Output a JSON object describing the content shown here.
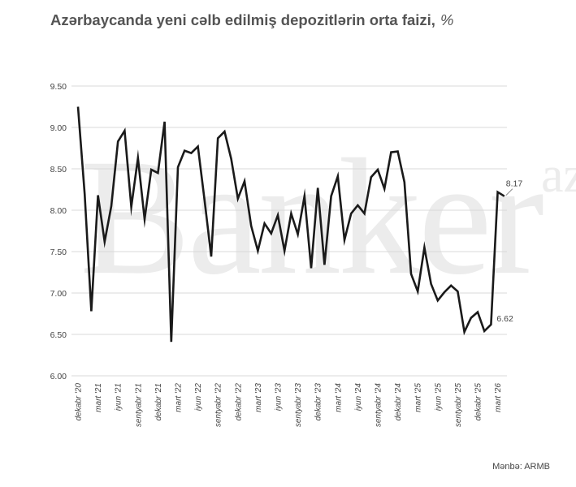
{
  "title": "Azərbaycanda yeni cəlb edilmiş depozitlərin orta faizi,",
  "title_unit": "%",
  "watermark": {
    "main": "Banker",
    "suffix": "az"
  },
  "source": "Mənbə: ARMB",
  "colors": {
    "line": "#1a1a1a",
    "grid": "#d9d9d9",
    "text": "#444444",
    "title": "#545454"
  },
  "chart_data": {
    "type": "line",
    "title": "Azərbaycanda yeni cəlb edilmiş depozitlərin orta faizi, %",
    "xlabel": "",
    "ylabel": "",
    "ylim": [
      6.0,
      9.5
    ],
    "yticks": [
      "9.50",
      "9.00",
      "8.50",
      "8.00",
      "7.50",
      "7.00",
      "6.50",
      "6.00"
    ],
    "grid": true,
    "xtick_labels": [
      {
        "i": 0,
        "label": "dekabr '20"
      },
      {
        "i": 3,
        "label": "mart '21"
      },
      {
        "i": 6,
        "label": "iyun '21"
      },
      {
        "i": 9,
        "label": "sentyabr '21"
      },
      {
        "i": 12,
        "label": "dekabr '21"
      },
      {
        "i": 15,
        "label": "mart '22"
      },
      {
        "i": 18,
        "label": "iyun '22"
      },
      {
        "i": 21,
        "label": "sentyabr '22"
      },
      {
        "i": 24,
        "label": "dekabr '22"
      },
      {
        "i": 27,
        "label": "mart '23"
      },
      {
        "i": 30,
        "label": "iyun '23"
      },
      {
        "i": 33,
        "label": "sentyabr '23"
      },
      {
        "i": 36,
        "label": "dekabr '23"
      },
      {
        "i": 39,
        "label": "mart '24"
      },
      {
        "i": 42,
        "label": "iyun '24"
      },
      {
        "i": 45,
        "label": "sentyabr '24"
      },
      {
        "i": 48,
        "label": "dekabr '24"
      },
      {
        "i": 51,
        "label": "mart '25"
      },
      {
        "i": 54,
        "label": "iyun '25"
      },
      {
        "i": 57,
        "label": "sentyabr '25"
      },
      {
        "i": 60,
        "label": "dekabr '25"
      },
      {
        "i": 63,
        "label": "mart '26"
      }
    ],
    "values": [
      9.25,
      8.2,
      6.78,
      8.18,
      7.62,
      8.05,
      8.83,
      8.96,
      8.04,
      8.63,
      7.89,
      8.49,
      8.45,
      9.07,
      6.41,
      8.52,
      8.72,
      8.69,
      8.77,
      8.12,
      7.44,
      8.87,
      8.95,
      8.62,
      8.14,
      8.35,
      7.81,
      7.51,
      7.84,
      7.72,
      7.94,
      7.51,
      7.96,
      7.71,
      8.17,
      7.3,
      8.27,
      7.34,
      8.17,
      8.41,
      7.64,
      7.96,
      8.06,
      7.96,
      8.4,
      8.49,
      8.26,
      8.7,
      8.71,
      8.34,
      7.23,
      7.02,
      7.55,
      7.11,
      6.91,
      7.01,
      7.09,
      7.02,
      6.53,
      6.7,
      6.77,
      6.54,
      6.62,
      8.22,
      8.17
    ],
    "annotations": [
      {
        "i": 64,
        "value": 8.17,
        "label": "8.17"
      },
      {
        "i": 62,
        "value": 6.62,
        "label": "6.62"
      }
    ]
  }
}
